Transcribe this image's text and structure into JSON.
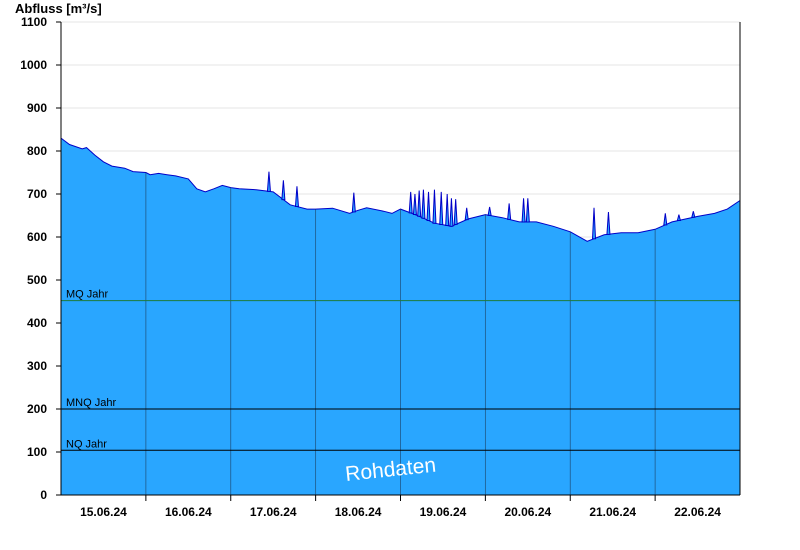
{
  "chart_data": {
    "type": "area",
    "title": "",
    "ylabel": "Abfluss [m³/s]",
    "xlabel": "",
    "ylim": [
      0,
      1100
    ],
    "yticks": [
      0,
      100,
      200,
      300,
      400,
      500,
      600,
      700,
      800,
      900,
      1000,
      1100
    ],
    "xlim": [
      0,
      8
    ],
    "x_day_labels": [
      "15.06.24",
      "16.06.24",
      "17.06.24",
      "18.06.24",
      "19.06.24",
      "20.06.24",
      "21.06.24",
      "22.06.24"
    ],
    "fill_color": "#29a6ff",
    "line_color": "#0000c8",
    "reference_lines": [
      {
        "label": "MQ Jahr",
        "value": 452,
        "color": "#1f7a3a"
      },
      {
        "label": "MNQ Jahr",
        "value": 200,
        "color": "#000000"
      },
      {
        "label": "NQ Jahr",
        "value": 104,
        "color": "#000000"
      }
    ],
    "watermark": "Rohdaten",
    "series": [
      {
        "x": [
          0,
          0.1,
          0.25,
          0.3,
          0.4,
          0.5,
          0.6,
          0.75,
          0.85,
          1.0,
          1.05,
          1.15,
          1.25,
          1.35,
          1.5,
          1.6,
          1.7,
          1.8,
          1.9,
          2.0,
          2.1,
          2.3,
          2.5,
          2.7,
          2.9,
          3.0,
          3.2,
          3.4,
          3.5,
          3.6,
          3.8,
          3.9,
          4.0,
          4.2,
          4.4,
          4.6,
          4.8,
          5.0,
          5.2,
          5.4,
          5.6,
          5.8,
          6.0,
          6.2,
          6.4,
          6.6,
          6.8,
          7.0,
          7.2,
          7.5,
          7.7,
          7.85,
          8.0
        ],
        "y": [
          830,
          815,
          805,
          808,
          790,
          775,
          765,
          760,
          752,
          750,
          745,
          748,
          745,
          742,
          735,
          712,
          705,
          712,
          720,
          715,
          712,
          710,
          705,
          675,
          665,
          665,
          667,
          655,
          662,
          668,
          660,
          655,
          665,
          650,
          632,
          625,
          642,
          652,
          645,
          635,
          635,
          625,
          612,
          590,
          605,
          610,
          610,
          618,
          635,
          648,
          655,
          665,
          685
        ]
      }
    ],
    "spikes": [
      {
        "x": 2.45,
        "y": 752
      },
      {
        "x": 2.62,
        "y": 732
      },
      {
        "x": 2.78,
        "y": 718
      },
      {
        "x": 3.45,
        "y": 703
      },
      {
        "x": 4.12,
        "y": 705
      },
      {
        "x": 4.17,
        "y": 700
      },
      {
        "x": 4.22,
        "y": 708
      },
      {
        "x": 4.27,
        "y": 710
      },
      {
        "x": 4.33,
        "y": 705
      },
      {
        "x": 4.4,
        "y": 710
      },
      {
        "x": 4.48,
        "y": 705
      },
      {
        "x": 4.55,
        "y": 700
      },
      {
        "x": 4.6,
        "y": 690
      },
      {
        "x": 4.65,
        "y": 688
      },
      {
        "x": 4.78,
        "y": 668
      },
      {
        "x": 5.05,
        "y": 670
      },
      {
        "x": 5.28,
        "y": 678
      },
      {
        "x": 5.45,
        "y": 690
      },
      {
        "x": 5.5,
        "y": 690
      },
      {
        "x": 6.28,
        "y": 668
      },
      {
        "x": 6.45,
        "y": 658
      },
      {
        "x": 7.12,
        "y": 655
      },
      {
        "x": 7.28,
        "y": 652
      },
      {
        "x": 7.45,
        "y": 660
      }
    ]
  }
}
